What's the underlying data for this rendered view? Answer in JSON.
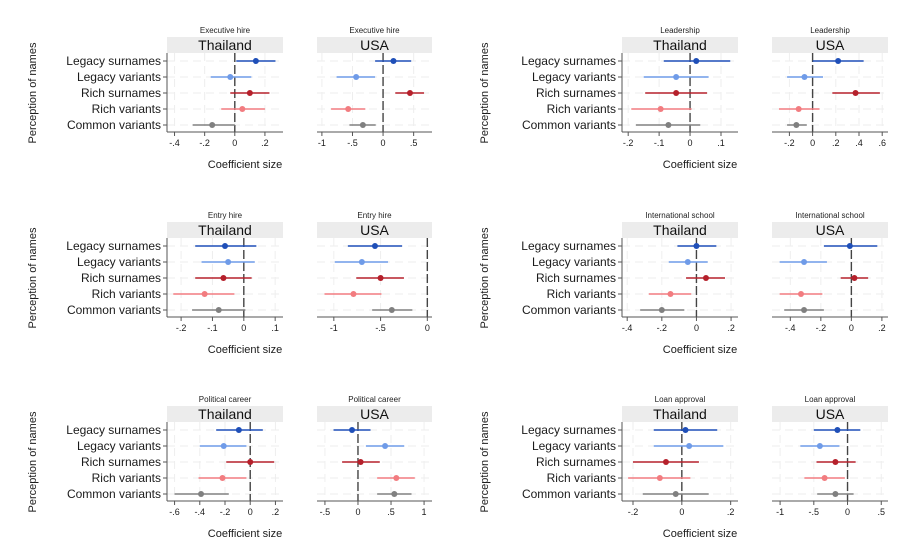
{
  "figure": {
    "y_axis_title": "Perception of names",
    "x_axis_title": "Coefficient size"
  },
  "colors": {
    "Legacy surnames": "#1f4fb8",
    "Legacy variants": "#6f9be8",
    "Rich surnames": "#b5202b",
    "Rich variants": "#f27c80",
    "Common variants": "#808080",
    "strip_bg": "#ececec",
    "zero_line": "#444444",
    "axis": "#555555",
    "grid": "#eeeeee"
  },
  "chart_data": [
    {
      "type": "scatter",
      "subtype": "coefficient-plot",
      "title": "Executive hire",
      "strip": "Thailand",
      "xlabel": "Coefficient size",
      "ylabel": "Perception of names",
      "categories": [
        "Legacy surnames",
        "Legacy variants",
        "Rich surnames",
        "Rich variants",
        "Common variants"
      ],
      "estimates": [
        0.14,
        -0.03,
        0.1,
        0.05,
        -0.15
      ],
      "ci_low": [
        0.01,
        -0.16,
        -0.03,
        -0.09,
        -0.28
      ],
      "ci_high": [
        0.27,
        0.11,
        0.23,
        0.2,
        0.0
      ],
      "xticks": [
        -0.4,
        -0.2,
        0,
        0.2
      ],
      "xtick_labels": [
        "-.4",
        "-.2",
        "0",
        ".2"
      ],
      "xlim": [
        -0.45,
        0.32
      ],
      "grid": true
    },
    {
      "type": "scatter",
      "subtype": "coefficient-plot",
      "title": "Executive hire",
      "strip": "USA",
      "xlabel": "Coefficient size",
      "ylabel": "Perception of names",
      "categories": [
        "Legacy surnames",
        "Legacy variants",
        "Rich surnames",
        "Rich variants",
        "Common variants"
      ],
      "estimates": [
        0.17,
        -0.44,
        0.44,
        -0.57,
        -0.33
      ],
      "ci_low": [
        -0.13,
        -0.76,
        0.2,
        -0.85,
        -0.55
      ],
      "ci_high": [
        0.46,
        -0.13,
        0.67,
        -0.29,
        -0.12
      ],
      "xticks": [
        -1,
        -0.5,
        0,
        0.5
      ],
      "xtick_labels": [
        "-1",
        "-.5",
        "0",
        ".5"
      ],
      "xlim": [
        -1.08,
        0.8
      ],
      "grid": true
    },
    {
      "type": "scatter",
      "subtype": "coefficient-plot",
      "title": "Leadership",
      "strip": "Thailand",
      "xlabel": "Coefficient size",
      "ylabel": "Perception of names",
      "categories": [
        "Legacy surnames",
        "Legacy variants",
        "Rich surnames",
        "Rich variants",
        "Common variants"
      ],
      "estimates": [
        0.02,
        -0.045,
        -0.045,
        -0.095,
        -0.07
      ],
      "ci_low": [
        -0.085,
        -0.15,
        -0.145,
        -0.19,
        -0.175
      ],
      "ci_high": [
        0.13,
        0.06,
        0.055,
        0.005,
        0.033
      ],
      "xticks": [
        -0.2,
        -0.1,
        0,
        0.1
      ],
      "xtick_labels": [
        "-.2",
        "-.1",
        "0",
        ".1"
      ],
      "xlim": [
        -0.22,
        0.155
      ],
      "grid": true
    },
    {
      "type": "scatter",
      "subtype": "coefficient-plot",
      "title": "Leadership",
      "strip": "USA",
      "xlabel": "Coefficient size",
      "ylabel": "Perception of names",
      "categories": [
        "Legacy surnames",
        "Legacy variants",
        "Rich surnames",
        "Rich variants",
        "Common variants"
      ],
      "estimates": [
        0.22,
        -0.07,
        0.37,
        -0.12,
        -0.14
      ],
      "ci_low": [
        0.0,
        -0.22,
        0.17,
        -0.29,
        -0.22
      ],
      "ci_high": [
        0.44,
        0.09,
        0.58,
        0.06,
        -0.05
      ],
      "xticks": [
        -0.2,
        0,
        0.2,
        0.4,
        0.6
      ],
      "xtick_labels": [
        "-.2",
        "0",
        ".2",
        ".4",
        ".6"
      ],
      "xlim": [
        -0.35,
        0.65
      ],
      "grid": true
    },
    {
      "type": "scatter",
      "subtype": "coefficient-plot",
      "title": "Entry hire",
      "strip": "Thailand",
      "xlabel": "Coefficient size",
      "ylabel": "Perception of names",
      "categories": [
        "Legacy surnames",
        "Legacy variants",
        "Rich surnames",
        "Rich variants",
        "Common variants"
      ],
      "estimates": [
        -0.06,
        -0.05,
        -0.065,
        -0.125,
        -0.08
      ],
      "ci_low": [
        -0.155,
        -0.135,
        -0.155,
        -0.225,
        -0.165
      ],
      "ci_high": [
        0.04,
        0.035,
        0.025,
        -0.03,
        0.005
      ],
      "xticks": [
        -0.2,
        -0.1,
        0,
        0.1
      ],
      "xtick_labels": [
        "-.2",
        "-.1",
        "0",
        ".1"
      ],
      "xlim": [
        -0.245,
        0.125
      ],
      "grid": true
    },
    {
      "type": "scatter",
      "subtype": "coefficient-plot",
      "title": "Entry hire",
      "strip": "USA",
      "xlabel": "Coefficient size",
      "ylabel": "Perception of names",
      "categories": [
        "Legacy surnames",
        "Legacy variants",
        "Rich surnames",
        "Rich variants",
        "Common variants"
      ],
      "estimates": [
        -0.56,
        -0.7,
        -0.5,
        -0.79,
        -0.38
      ],
      "ci_low": [
        -0.85,
        -0.99,
        -0.76,
        -1.1,
        -0.59
      ],
      "ci_high": [
        -0.27,
        -0.42,
        -0.25,
        -0.49,
        -0.16
      ],
      "xticks": [
        -1,
        -0.5,
        0
      ],
      "xtick_labels": [
        "-1",
        "-.5",
        "0"
      ],
      "xlim": [
        -1.18,
        0.05
      ],
      "grid": true
    },
    {
      "type": "scatter",
      "subtype": "coefficient-plot",
      "title": "International school",
      "strip": "Thailand",
      "xlabel": "Coefficient size",
      "ylabel": "Perception of names",
      "categories": [
        "Legacy surnames",
        "Legacy variants",
        "Rich surnames",
        "Rich variants",
        "Common variants"
      ],
      "estimates": [
        0.0,
        -0.05,
        0.055,
        -0.15,
        -0.2
      ],
      "ci_low": [
        -0.11,
        -0.16,
        -0.06,
        -0.275,
        -0.325
      ],
      "ci_high": [
        0.115,
        0.065,
        0.165,
        -0.03,
        -0.07
      ],
      "xticks": [
        -0.4,
        -0.2,
        0,
        0.2
      ],
      "xtick_labels": [
        "-.4",
        "-.2",
        "0",
        ".2"
      ],
      "xlim": [
        -0.43,
        0.24
      ],
      "grid": true
    },
    {
      "type": "scatter",
      "subtype": "coefficient-plot",
      "title": "International school",
      "strip": "USA",
      "xlabel": "Coefficient size",
      "ylabel": "Perception of names",
      "categories": [
        "Legacy surnames",
        "Legacy variants",
        "Rich surnames",
        "Rich variants",
        "Common variants"
      ],
      "estimates": [
        -0.01,
        -0.31,
        0.02,
        -0.33,
        -0.31
      ],
      "ci_low": [
        -0.18,
        -0.47,
        -0.07,
        -0.47,
        -0.44
      ],
      "ci_high": [
        0.17,
        -0.16,
        0.11,
        -0.19,
        -0.18
      ],
      "xticks": [
        -0.4,
        -0.2,
        0,
        0.2
      ],
      "xtick_labels": [
        "-.4",
        "-.2",
        "0",
        ".2"
      ],
      "xlim": [
        -0.52,
        0.24
      ],
      "grid": true
    },
    {
      "type": "scatter",
      "subtype": "coefficient-plot",
      "title": "Political career",
      "strip": "Thailand",
      "xlabel": "Coefficient size",
      "ylabel": "Perception of names",
      "categories": [
        "Legacy surnames",
        "Legacy variants",
        "Rich surnames",
        "Rich variants",
        "Common variants"
      ],
      "estimates": [
        -0.09,
        -0.21,
        0.0,
        -0.22,
        -0.39
      ],
      "ci_low": [
        -0.27,
        -0.4,
        -0.19,
        -0.41,
        -0.6
      ],
      "ci_high": [
        0.1,
        -0.03,
        0.19,
        -0.03,
        -0.17
      ],
      "xticks": [
        -0.6,
        -0.4,
        -0.2,
        0,
        0.2
      ],
      "xtick_labels": [
        "-.6",
        "-.4",
        "-.2",
        "0",
        ".2"
      ],
      "xlim": [
        -0.66,
        0.26
      ],
      "grid": true
    },
    {
      "type": "scatter",
      "subtype": "coefficient-plot",
      "title": "Political career",
      "strip": "USA",
      "xlabel": "Coefficient size",
      "ylabel": "Perception of names",
      "categories": [
        "Legacy surnames",
        "Legacy variants",
        "Rich surnames",
        "Rich variants",
        "Common variants"
      ],
      "estimates": [
        -0.09,
        0.41,
        0.04,
        0.58,
        0.55
      ],
      "ci_low": [
        -0.37,
        0.12,
        -0.24,
        0.29,
        0.29
      ],
      "ci_high": [
        0.19,
        0.7,
        0.33,
        0.86,
        0.81
      ],
      "xticks": [
        -0.5,
        0,
        0.5,
        1
      ],
      "xtick_labels": [
        "-.5",
        "0",
        ".5",
        "1"
      ],
      "xlim": [
        -0.62,
        1.12
      ],
      "grid": true
    },
    {
      "type": "scatter",
      "subtype": "coefficient-plot",
      "title": "Loan approval",
      "strip": "Thailand",
      "xlabel": "Coefficient size",
      "ylabel": "Perception of names",
      "categories": [
        "Legacy surnames",
        "Legacy variants",
        "Rich surnames",
        "Rich variants",
        "Common variants"
      ],
      "estimates": [
        0.015,
        0.03,
        -0.065,
        -0.09,
        -0.025
      ],
      "ci_low": [
        -0.115,
        -0.115,
        -0.2,
        -0.22,
        -0.16
      ],
      "ci_high": [
        0.145,
        0.17,
        0.07,
        0.035,
        0.11
      ],
      "xticks": [
        -0.2,
        0,
        0.2
      ],
      "xtick_labels": [
        "-.2",
        "0",
        ".2"
      ],
      "xlim": [
        -0.245,
        0.23
      ],
      "grid": true
    },
    {
      "type": "scatter",
      "subtype": "coefficient-plot",
      "title": "Loan approval",
      "strip": "USA",
      "xlabel": "Coefficient size",
      "ylabel": "Perception of names",
      "categories": [
        "Legacy surnames",
        "Legacy variants",
        "Rich surnames",
        "Rich variants",
        "Common variants"
      ],
      "estimates": [
        -0.15,
        -0.41,
        -0.18,
        -0.34,
        -0.18
      ],
      "ci_low": [
        -0.5,
        -0.7,
        -0.46,
        -0.64,
        -0.45
      ],
      "ci_high": [
        0.19,
        -0.12,
        0.12,
        -0.04,
        0.09
      ],
      "xticks": [
        -1,
        -0.5,
        0,
        0.5
      ],
      "xtick_labels": [
        "-1",
        "-.5",
        "0",
        ".5"
      ],
      "xlim": [
        -1.12,
        0.6
      ],
      "grid": true
    }
  ]
}
